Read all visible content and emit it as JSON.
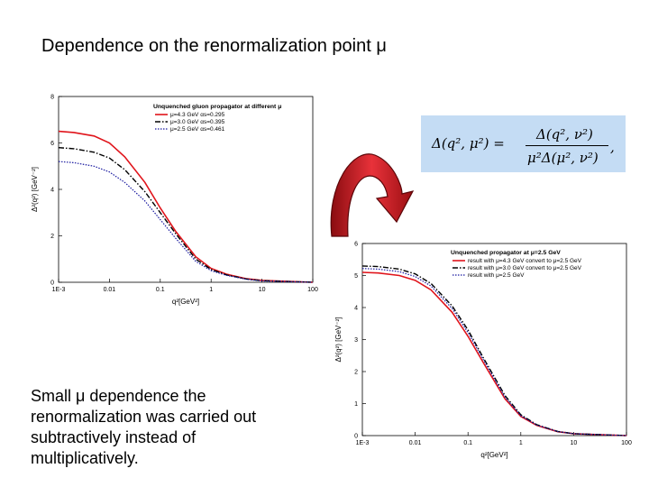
{
  "slide": {
    "title": "Dependence on the renormalization point μ",
    "note": "Small μ  dependence the renormalization was  carried out subtractively instead of multiplicatively."
  },
  "formula": {
    "lhs": "Δ(q², μ²) =",
    "numerator": "Δ(q², ν²)",
    "denominator": "μ²Δ(μ², ν²)",
    "trailing": ","
  },
  "arrow": {
    "color": "#c0141b",
    "icon": "curved-arrow-icon"
  },
  "chart_data": [
    {
      "type": "line",
      "title": "",
      "xlabel": "q²[GeV²]",
      "ylabel": "Δ²(q²) [GeV⁻²]",
      "xscale": "log",
      "xlim": [
        0.001,
        100
      ],
      "ylim": [
        0,
        8
      ],
      "xticks": [
        "1E-3",
        "0.01",
        "0.1",
        "1",
        "10",
        "100"
      ],
      "yticks": [
        "0",
        "2",
        "4",
        "6",
        "8"
      ],
      "legend_title": "Unquenched  gluon propagator at different μ",
      "legend_position": "top-right",
      "series": [
        {
          "name": "μ=4.3 GeV  αs=0.295",
          "color": "#e0141b",
          "style": "solid",
          "x": [
            0.001,
            0.002,
            0.005,
            0.01,
            0.02,
            0.05,
            0.1,
            0.2,
            0.5,
            1,
            2,
            5,
            10,
            100
          ],
          "y": [
            6.5,
            6.45,
            6.3,
            6.0,
            5.4,
            4.3,
            3.2,
            2.2,
            1.1,
            0.6,
            0.35,
            0.15,
            0.08,
            0.0
          ]
        },
        {
          "name": "μ=3.0 GeV  αs=0.395",
          "color": "#000000",
          "style": "dashdot",
          "x": [
            0.001,
            0.002,
            0.005,
            0.01,
            0.02,
            0.05,
            0.1,
            0.2,
            0.5,
            1,
            2,
            5,
            10,
            100
          ],
          "y": [
            5.8,
            5.75,
            5.6,
            5.35,
            4.85,
            3.9,
            3.0,
            2.1,
            1.0,
            0.55,
            0.32,
            0.14,
            0.07,
            0.0
          ]
        },
        {
          "name": "μ=2.5 GeV  αs=0.461",
          "color": "#1a1aa0",
          "style": "dotted",
          "x": [
            0.001,
            0.002,
            0.005,
            0.01,
            0.02,
            0.05,
            0.1,
            0.2,
            0.5,
            1,
            2,
            5,
            10,
            100
          ],
          "y": [
            5.2,
            5.15,
            5.0,
            4.75,
            4.3,
            3.5,
            2.7,
            1.9,
            0.9,
            0.5,
            0.3,
            0.13,
            0.06,
            0.0
          ]
        }
      ]
    },
    {
      "type": "line",
      "title": "",
      "xlabel": "q²[GeV²]",
      "ylabel": "Δ²(q²) [GeV⁻²]",
      "xscale": "log",
      "xlim": [
        0.001,
        100
      ],
      "ylim": [
        0,
        6
      ],
      "xticks": [
        "1E-3",
        "0.01",
        "0.1",
        "1",
        "10",
        "100"
      ],
      "yticks": [
        "0",
        "1",
        "2",
        "3",
        "4",
        "5",
        "6"
      ],
      "legend_title": "Unquenched  propagator at μ=2.5 GeV",
      "legend_position": "top-right",
      "series": [
        {
          "name": "result with μ=4.3 GeV convert to μ=2.5 GeV",
          "color": "#e0141b",
          "style": "solid",
          "x": [
            0.001,
            0.002,
            0.005,
            0.01,
            0.02,
            0.05,
            0.1,
            0.2,
            0.5,
            1,
            2,
            5,
            10,
            100
          ],
          "y": [
            5.1,
            5.08,
            5.0,
            4.85,
            4.55,
            3.85,
            3.1,
            2.25,
            1.15,
            0.6,
            0.32,
            0.12,
            0.06,
            0.0
          ]
        },
        {
          "name": "result with μ=3.0 GeV convert to μ=2.5 GeV",
          "color": "#000000",
          "style": "dashdot",
          "x": [
            0.001,
            0.002,
            0.005,
            0.01,
            0.02,
            0.05,
            0.1,
            0.2,
            0.5,
            1,
            2,
            5,
            10,
            100
          ],
          "y": [
            5.3,
            5.28,
            5.2,
            5.05,
            4.75,
            4.05,
            3.3,
            2.4,
            1.25,
            0.65,
            0.34,
            0.13,
            0.06,
            0.0
          ]
        },
        {
          "name": "result with μ=2.5 GeV",
          "color": "#1a1aa0",
          "style": "dotted",
          "x": [
            0.001,
            0.002,
            0.005,
            0.01,
            0.02,
            0.05,
            0.1,
            0.2,
            0.5,
            1,
            2,
            5,
            10,
            100
          ],
          "y": [
            5.22,
            5.2,
            5.12,
            4.97,
            4.67,
            3.97,
            3.22,
            2.34,
            1.2,
            0.62,
            0.33,
            0.125,
            0.06,
            0.0
          ]
        }
      ]
    }
  ]
}
